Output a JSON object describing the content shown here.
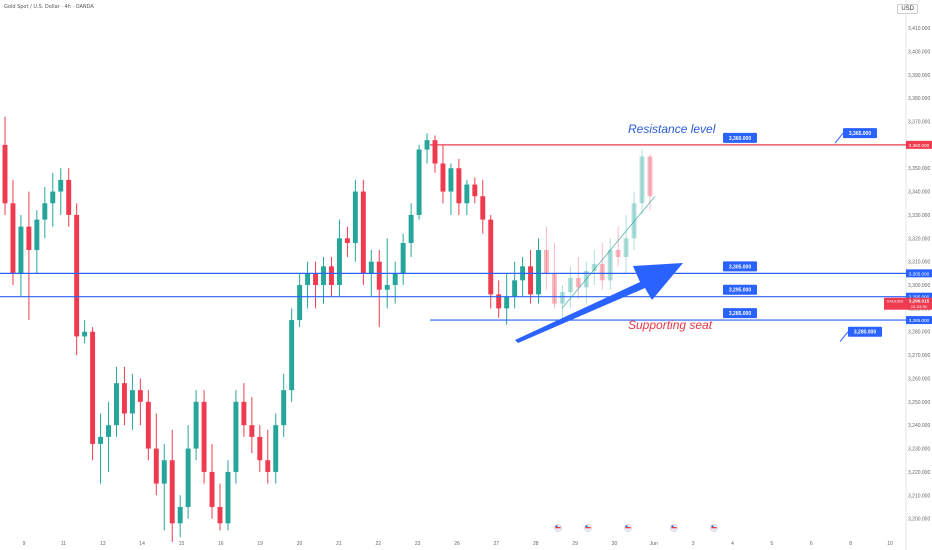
{
  "header": {
    "title": "Gold Spot / U.S. Dollar · 4h · OANDA",
    "currency": "USD"
  },
  "colors": {
    "up": "#26a69a",
    "down": "#ef3b4f",
    "resistance": "#ef3b4f",
    "support": "#2962ff",
    "label_bg": "#2962ff",
    "arrow": "#2962ff"
  },
  "annotations": {
    "resistance_text": "Resistance level",
    "support_text": "Supporting seat"
  },
  "chart_data": {
    "type": "candlestick",
    "ylim": [
      3193,
      3422
    ],
    "y_ticks": [
      "3,410.000",
      "3,400.000",
      "3,390.000",
      "3,380.000",
      "3,370.000",
      "3,360.000",
      "3,350.000",
      "3,340.000",
      "3,330.000",
      "3,320.000",
      "3,310.000",
      "3,300.000",
      "3,290.000",
      "3,280.000",
      "3,270.000",
      "3,260.000",
      "3,250.000",
      "3,240.000",
      "3,230.000",
      "3,220.000",
      "3,210.000",
      "3,200.000"
    ],
    "y_tick_values": [
      3410,
      3400,
      3390,
      3380,
      3370,
      3360,
      3350,
      3340,
      3330,
      3320,
      3310,
      3300,
      3290,
      3280,
      3270,
      3260,
      3250,
      3240,
      3230,
      3220,
      3210,
      3200
    ],
    "x_ticks": [
      "9",
      "11",
      "13",
      "14",
      "15",
      "16",
      "19",
      "20",
      "21",
      "22",
      "23",
      "26",
      "27",
      "28",
      "29",
      "30",
      "Jun",
      "3",
      "4",
      "5",
      "6",
      "8",
      "10"
    ],
    "levels": [
      {
        "price": 3360,
        "label": "3,360.000",
        "axis_label": "3,360.000",
        "color": "resistance"
      },
      {
        "price": 3305,
        "label": "3,305.000",
        "axis_label": "3,305.000",
        "color": "support"
      },
      {
        "price": 3295,
        "label": "3,295.000",
        "axis_label": "3,295.000",
        "color": "support"
      },
      {
        "price": 3285,
        "label": "3,285.000",
        "axis_label": "3,285.000",
        "color": "support"
      }
    ],
    "callouts": [
      {
        "label": "3,365.000"
      },
      {
        "label": "3,280.000"
      }
    ],
    "current_price": {
      "symbol": "XAUUSD",
      "value": "3,296.015",
      "countdown": "01:03:35"
    },
    "event_markers": 5,
    "candles": [
      {
        "o": 3360,
        "h": 3372,
        "l": 3330,
        "c": 3335
      },
      {
        "o": 3335,
        "h": 3345,
        "l": 3300,
        "c": 3305
      },
      {
        "o": 3305,
        "h": 3330,
        "l": 3295,
        "c": 3325
      },
      {
        "o": 3325,
        "h": 3340,
        "l": 3285,
        "c": 3315
      },
      {
        "o": 3315,
        "h": 3332,
        "l": 3305,
        "c": 3328
      },
      {
        "o": 3328,
        "h": 3342,
        "l": 3320,
        "c": 3335
      },
      {
        "o": 3335,
        "h": 3348,
        "l": 3325,
        "c": 3340
      },
      {
        "o": 3340,
        "h": 3350,
        "l": 3330,
        "c": 3345
      },
      {
        "o": 3345,
        "h": 3350,
        "l": 3325,
        "c": 3330
      },
      {
        "o": 3330,
        "h": 3335,
        "l": 3270,
        "c": 3278
      },
      {
        "o": 3278,
        "h": 3285,
        "l": 3275,
        "c": 3280
      },
      {
        "o": 3280,
        "h": 3282,
        "l": 3225,
        "c": 3232
      },
      {
        "o": 3232,
        "h": 3245,
        "l": 3215,
        "c": 3235
      },
      {
        "o": 3235,
        "h": 3250,
        "l": 3220,
        "c": 3240
      },
      {
        "o": 3240,
        "h": 3265,
        "l": 3235,
        "c": 3258
      },
      {
        "o": 3258,
        "h": 3265,
        "l": 3240,
        "c": 3245
      },
      {
        "o": 3245,
        "h": 3262,
        "l": 3238,
        "c": 3255
      },
      {
        "o": 3255,
        "h": 3260,
        "l": 3240,
        "c": 3250
      },
      {
        "o": 3250,
        "h": 3255,
        "l": 3225,
        "c": 3230
      },
      {
        "o": 3230,
        "h": 3245,
        "l": 3210,
        "c": 3215
      },
      {
        "o": 3215,
        "h": 3232,
        "l": 3195,
        "c": 3225
      },
      {
        "o": 3225,
        "h": 3238,
        "l": 3190,
        "c": 3198
      },
      {
        "o": 3198,
        "h": 3210,
        "l": 3192,
        "c": 3205
      },
      {
        "o": 3205,
        "h": 3240,
        "l": 3200,
        "c": 3230
      },
      {
        "o": 3230,
        "h": 3255,
        "l": 3225,
        "c": 3250
      },
      {
        "o": 3250,
        "h": 3255,
        "l": 3215,
        "c": 3220
      },
      {
        "o": 3220,
        "h": 3232,
        "l": 3200,
        "c": 3205
      },
      {
        "o": 3205,
        "h": 3215,
        "l": 3195,
        "c": 3198
      },
      {
        "o": 3198,
        "h": 3225,
        "l": 3195,
        "c": 3220
      },
      {
        "o": 3220,
        "h": 3255,
        "l": 3215,
        "c": 3250
      },
      {
        "o": 3250,
        "h": 3258,
        "l": 3235,
        "c": 3240
      },
      {
        "o": 3240,
        "h": 3252,
        "l": 3228,
        "c": 3235
      },
      {
        "o": 3235,
        "h": 3240,
        "l": 3220,
        "c": 3225
      },
      {
        "o": 3225,
        "h": 3238,
        "l": 3215,
        "c": 3220
      },
      {
        "o": 3220,
        "h": 3245,
        "l": 3215,
        "c": 3240
      },
      {
        "o": 3240,
        "h": 3262,
        "l": 3235,
        "c": 3255
      },
      {
        "o": 3255,
        "h": 3290,
        "l": 3250,
        "c": 3285
      },
      {
        "o": 3285,
        "h": 3305,
        "l": 3282,
        "c": 3300
      },
      {
        "o": 3300,
        "h": 3310,
        "l": 3290,
        "c": 3305
      },
      {
        "o": 3305,
        "h": 3310,
        "l": 3290,
        "c": 3300
      },
      {
        "o": 3300,
        "h": 3312,
        "l": 3292,
        "c": 3308
      },
      {
        "o": 3308,
        "h": 3312,
        "l": 3295,
        "c": 3300
      },
      {
        "o": 3300,
        "h": 3328,
        "l": 3295,
        "c": 3320
      },
      {
        "o": 3320,
        "h": 3325,
        "l": 3312,
        "c": 3318
      },
      {
        "o": 3318,
        "h": 3345,
        "l": 3310,
        "c": 3340
      },
      {
        "o": 3340,
        "h": 3345,
        "l": 3300,
        "c": 3305
      },
      {
        "o": 3305,
        "h": 3315,
        "l": 3295,
        "c": 3310
      },
      {
        "o": 3310,
        "h": 3315,
        "l": 3282,
        "c": 3298
      },
      {
        "o": 3298,
        "h": 3320,
        "l": 3290,
        "c": 3300
      },
      {
        "o": 3300,
        "h": 3310,
        "l": 3292,
        "c": 3305
      },
      {
        "o": 3305,
        "h": 3322,
        "l": 3300,
        "c": 3318
      },
      {
        "o": 3318,
        "h": 3335,
        "l": 3312,
        "c": 3330
      },
      {
        "o": 3330,
        "h": 3360,
        "l": 3328,
        "c": 3358
      },
      {
        "o": 3358,
        "h": 3365,
        "l": 3352,
        "c": 3362
      },
      {
        "o": 3362,
        "h": 3364,
        "l": 3348,
        "c": 3352
      },
      {
        "o": 3352,
        "h": 3360,
        "l": 3335,
        "c": 3340
      },
      {
        "o": 3340,
        "h": 3352,
        "l": 3330,
        "c": 3350
      },
      {
        "o": 3350,
        "h": 3354,
        "l": 3330,
        "c": 3335
      },
      {
        "o": 3335,
        "h": 3345,
        "l": 3330,
        "c": 3343
      },
      {
        "o": 3343,
        "h": 3346,
        "l": 3335,
        "c": 3338
      },
      {
        "o": 3338,
        "h": 3345,
        "l": 3322,
        "c": 3328
      },
      {
        "o": 3328,
        "h": 3330,
        "l": 3290,
        "c": 3296
      },
      {
        "o": 3296,
        "h": 3302,
        "l": 3286,
        "c": 3290
      },
      {
        "o": 3290,
        "h": 3305,
        "l": 3283,
        "c": 3295
      },
      {
        "o": 3295,
        "h": 3310,
        "l": 3290,
        "c": 3302
      },
      {
        "o": 3302,
        "h": 3312,
        "l": 3295,
        "c": 3308
      },
      {
        "o": 3308,
        "h": 3315,
        "l": 3292,
        "c": 3296
      },
      {
        "o": 3296,
        "h": 3320,
        "l": 3292,
        "c": 3315
      },
      {
        "o": 3315,
        "h": 3325,
        "l": 3298,
        "c": 3305
      },
      {
        "o": 3305,
        "h": 3318,
        "l": 3290,
        "c": 3292
      },
      {
        "o": 3292,
        "h": 3300,
        "l": 3285,
        "c": 3297
      },
      {
        "o": 3297,
        "h": 3308,
        "l": 3290,
        "c": 3303
      },
      {
        "o": 3303,
        "h": 3312,
        "l": 3294,
        "c": 3299
      },
      {
        "o": 3299,
        "h": 3310,
        "l": 3292,
        "c": 3306
      },
      {
        "o": 3306,
        "h": 3315,
        "l": 3300,
        "c": 3309
      },
      {
        "o": 3309,
        "h": 3318,
        "l": 3298,
        "c": 3302
      },
      {
        "o": 3302,
        "h": 3320,
        "l": 3298,
        "c": 3315
      },
      {
        "o": 3315,
        "h": 3325,
        "l": 3308,
        "c": 3312
      },
      {
        "o": 3312,
        "h": 3330,
        "l": 3305,
        "c": 3320
      },
      {
        "o": 3320,
        "h": 3340,
        "l": 3315,
        "c": 3335
      },
      {
        "o": 3335,
        "h": 3358,
        "l": 3330,
        "c": 3355
      },
      {
        "o": 3355,
        "h": 3356,
        "l": 3332,
        "c": 3338
      }
    ]
  }
}
